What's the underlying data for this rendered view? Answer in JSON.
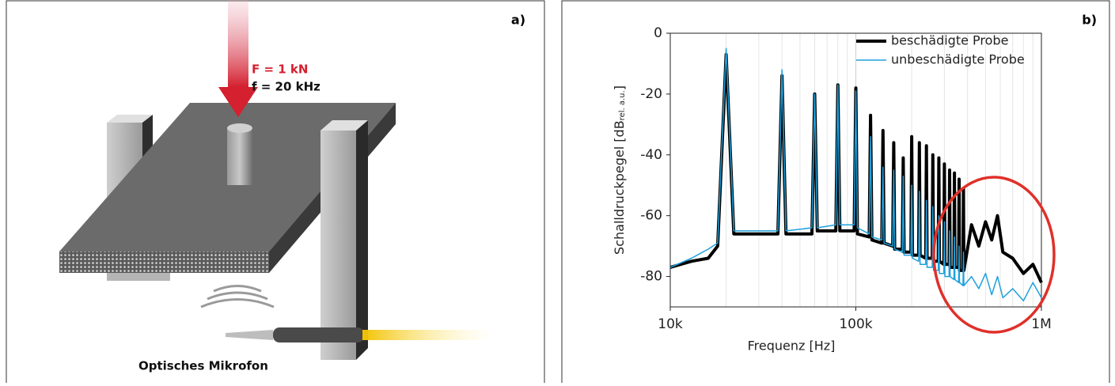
{
  "illustration": {
    "panel_label": "a)",
    "force": "F = 1 kN",
    "frequency": "f = 20 kHz",
    "caption": "Optisches Mikrofon"
  },
  "chart_data": {
    "type": "line",
    "panel_label": "b)",
    "ylabel": "Schalldruckpegel [dB",
    "ylabel_subscript": "rel. a.u.",
    "ylabel_end": "]",
    "xlabel": "Frequenz [Hz]",
    "log_x": true,
    "grid": true,
    "legend": "top-right",
    "xlim": [
      10000,
      1000000
    ],
    "xticks": [
      {
        "value": 10000,
        "label": "10k"
      },
      {
        "value": 100000,
        "label": "100k"
      },
      {
        "value": 1000000,
        "label": "1M"
      }
    ],
    "ylim": [
      -90,
      0
    ],
    "yticks": [
      0,
      -20,
      -40,
      -60,
      -80
    ],
    "x": [
      10000,
      13000,
      16000,
      18000,
      20000,
      22000,
      38000,
      40000,
      42000,
      58000,
      60000,
      62000,
      78000,
      80000,
      82000,
      98000,
      100000,
      102000,
      118000,
      120000,
      122000,
      138000,
      140000,
      142000,
      158000,
      160000,
      162000,
      178000,
      180000,
      182000,
      198000,
      200000,
      202000,
      218000,
      220000,
      222000,
      238000,
      240000,
      242000,
      258000,
      260000,
      262000,
      278000,
      280000,
      282000,
      298000,
      300000,
      302000,
      318000,
      320000,
      322000,
      338000,
      340000,
      342000,
      358000,
      360000,
      362000,
      378000,
      380000,
      382000,
      420000,
      460000,
      500000,
      540000,
      580000,
      620000,
      700000,
      800000,
      900000,
      1000000
    ],
    "series": [
      {
        "name": "beschädigte Probe",
        "color": "#000000",
        "width": 4,
        "values": [
          -77,
          -75,
          -74,
          -70,
          -7,
          -66,
          -66,
          -14,
          -66,
          -66,
          -20,
          -65,
          -65,
          -17,
          -65,
          -65,
          -18,
          -66,
          -67,
          -27,
          -68,
          -69,
          -32,
          -69,
          -70,
          -36,
          -71,
          -71,
          -41,
          -72,
          -72,
          -34,
          -73,
          -73,
          -36,
          -73,
          -74,
          -37,
          -74,
          -74,
          -40,
          -75,
          -75,
          -41,
          -75,
          -76,
          -43,
          -76,
          -76,
          -45,
          -77,
          -77,
          -46,
          -77,
          -77,
          -48,
          -78,
          -78,
          -51,
          -78,
          -63,
          -70,
          -62,
          -68,
          -60,
          -72,
          -74,
          -79,
          -76,
          -82
        ]
      },
      {
        "name": "unbeschädigte Probe",
        "color": "#1ea0dc",
        "width": 1.5,
        "values": [
          -77,
          -74,
          -71,
          -69,
          -5,
          -65,
          -65,
          -12,
          -65,
          -64,
          -20,
          -64,
          -63,
          -17,
          -63,
          -63,
          -19,
          -64,
          -66,
          -34,
          -67,
          -68,
          -44,
          -69,
          -70,
          -45,
          -71,
          -72,
          -47,
          -73,
          -73,
          -50,
          -74,
          -75,
          -52,
          -76,
          -76,
          -55,
          -77,
          -77,
          -57,
          -78,
          -78,
          -60,
          -79,
          -79,
          -62,
          -80,
          -80,
          -65,
          -80,
          -81,
          -67,
          -81,
          -82,
          -70,
          -82,
          -83,
          -72,
          -83,
          -80,
          -84,
          -79,
          -86,
          -80,
          -87,
          -84,
          -88,
          -82,
          -87
        ]
      }
    ]
  }
}
